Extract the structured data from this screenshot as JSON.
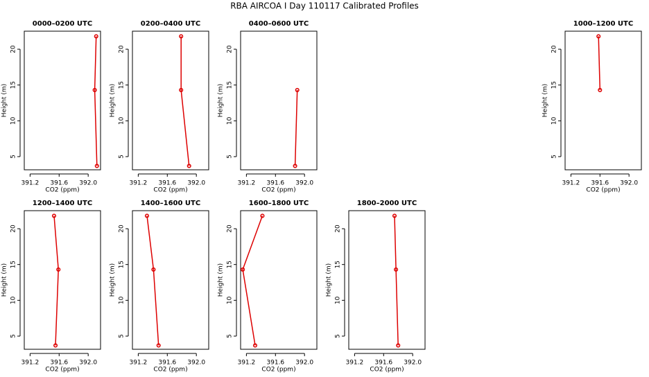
{
  "title": "RBA AIRCOA I  Day 110117  Calibrated Profiles",
  "chart_data": [
    {
      "type": "line",
      "title": "0000–0200 UTC",
      "xlabel": "CO2 (ppm)",
      "ylabel": "Height (m)",
      "color": "#dd0000",
      "x": [
        392.12,
        392.09,
        392.11
      ],
      "values": [
        3.7,
        14.3,
        21.8
      ],
      "xlim": [
        391.12,
        392.17
      ],
      "ylim": [
        3.16,
        22.52
      ],
      "xticks": [
        391.2,
        391.6,
        {
          "value": 392,
          "label": "392.0"
        }
      ],
      "yticks": [
        5,
        10,
        15,
        20
      ]
    },
    {
      "type": "line",
      "title": "0200–0400 UTC",
      "xlabel": "CO2 (ppm)",
      "ylabel": "Height (m)",
      "color": "#dd0000",
      "x": [
        391.9,
        391.79,
        391.79
      ],
      "values": [
        3.7,
        14.3,
        21.8
      ],
      "xlim": [
        391.12,
        392.17
      ],
      "ylim": [
        3.16,
        22.52
      ],
      "xticks": [
        391.2,
        391.6,
        {
          "value": 392,
          "label": "392.0"
        }
      ],
      "yticks": [
        5,
        10,
        15,
        20
      ]
    },
    {
      "type": "line",
      "title": "0400–0600 UTC",
      "xlabel": "CO2 (ppm)",
      "ylabel": "Height (m)",
      "color": "#dd0000",
      "x": [
        391.87,
        391.9
      ],
      "values": [
        3.7,
        14.3
      ],
      "xlim": [
        391.12,
        392.17
      ],
      "ylim": [
        3.16,
        22.52
      ],
      "xticks": [
        391.2,
        391.6,
        {
          "value": 392,
          "label": "392.0"
        }
      ],
      "yticks": [
        5,
        10,
        15,
        20
      ]
    },
    {
      "type": "line",
      "title": "1000–1200 UTC",
      "xlabel": "CO2 (ppm)",
      "ylabel": "Height (m)",
      "color": "#dd0000",
      "x": [
        391.6,
        391.58
      ],
      "values": [
        14.3,
        21.8
      ],
      "xlim": [
        391.12,
        392.17
      ],
      "ylim": [
        3.16,
        22.52
      ],
      "xticks": [
        391.2,
        391.6,
        {
          "value": 392,
          "label": "392.0"
        }
      ],
      "yticks": [
        5,
        10,
        15,
        20
      ]
    },
    {
      "type": "line",
      "title": "1200–1400 UTC",
      "xlabel": "CO2 (ppm)",
      "ylabel": "Height (m)",
      "color": "#dd0000",
      "x": [
        391.55,
        391.59,
        391.53
      ],
      "values": [
        3.7,
        14.3,
        21.8
      ],
      "xlim": [
        391.12,
        392.17
      ],
      "ylim": [
        3.16,
        22.52
      ],
      "xticks": [
        391.2,
        391.6,
        {
          "value": 392,
          "label": "392.0"
        }
      ],
      "yticks": [
        5,
        10,
        15,
        20
      ]
    },
    {
      "type": "line",
      "title": "1400–1600 UTC",
      "xlabel": "CO2 (ppm)",
      "ylabel": "Height (m)",
      "color": "#dd0000",
      "x": [
        391.48,
        391.41,
        391.32
      ],
      "values": [
        3.7,
        14.3,
        21.8
      ],
      "xlim": [
        391.12,
        392.17
      ],
      "ylim": [
        3.16,
        22.52
      ],
      "xticks": [
        391.2,
        391.6,
        {
          "value": 392,
          "label": "392.0"
        }
      ],
      "yticks": [
        5,
        10,
        15,
        20
      ]
    },
    {
      "type": "line",
      "title": "1600–1800 UTC",
      "xlabel": "CO2 (ppm)",
      "ylabel": "Height (m)",
      "color": "#dd0000",
      "x": [
        391.32,
        391.15,
        391.42
      ],
      "values": [
        3.7,
        14.3,
        21.8
      ],
      "xlim": [
        391.12,
        392.17
      ],
      "ylim": [
        3.16,
        22.52
      ],
      "xticks": [
        391.2,
        391.6,
        {
          "value": 392,
          "label": "392.0"
        }
      ],
      "yticks": [
        5,
        10,
        15,
        20
      ]
    },
    {
      "type": "line",
      "title": "1800–2000 UTC",
      "xlabel": "CO2 (ppm)",
      "ylabel": "Height (m)",
      "color": "#dd0000",
      "x": [
        391.8,
        391.77,
        391.75
      ],
      "values": [
        3.7,
        14.3,
        21.8
      ],
      "xlim": [
        391.12,
        392.17
      ],
      "ylim": [
        3.16,
        22.52
      ],
      "xticks": [
        391.2,
        391.6,
        {
          "value": 392,
          "label": "392.0"
        }
      ],
      "yticks": [
        5,
        10,
        15,
        20
      ]
    }
  ]
}
